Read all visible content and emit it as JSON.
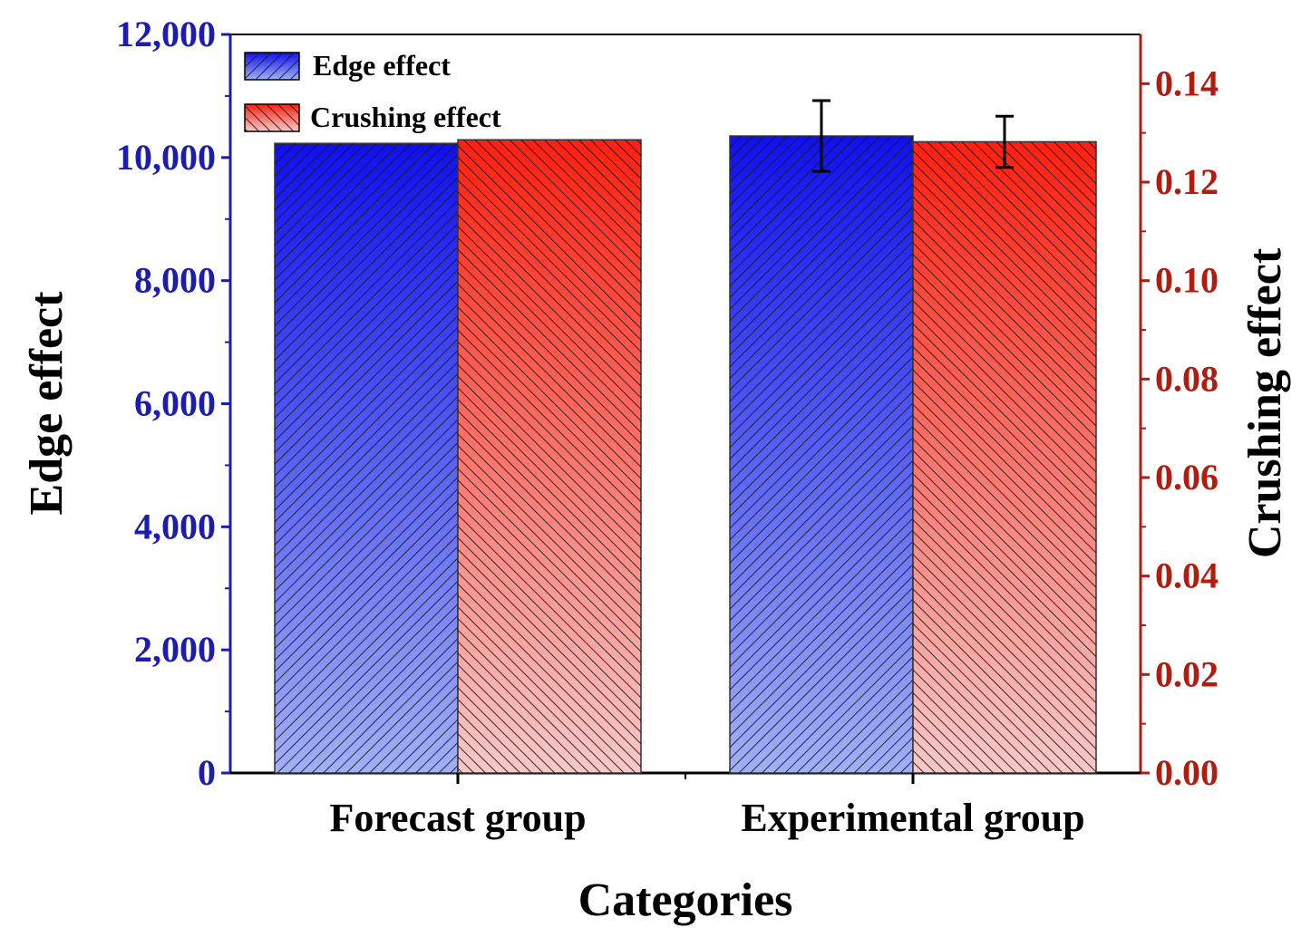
{
  "chart_data": {
    "type": "bar",
    "categories": [
      "Forecast group",
      "Experimental group"
    ],
    "xlabel": "Categories",
    "ylabel_left": "Edge effect",
    "ylabel_right": "Crushing effect",
    "ylim_left": [
      0,
      12000
    ],
    "ylim_right": [
      0,
      0.15
    ],
    "yticks_left": [
      0,
      2000,
      4000,
      6000,
      8000,
      10000,
      12000
    ],
    "yticks_left_labels": [
      "0",
      "2,000",
      "4,000",
      "6,000",
      "8,000",
      "10,000",
      "12,000"
    ],
    "yticks_right": [
      0,
      0.02,
      0.04,
      0.06,
      0.08,
      0.1,
      0.12,
      0.14
    ],
    "yticks_right_labels": [
      "0.00",
      "0.02",
      "0.04",
      "0.06",
      "0.08",
      "0.10",
      "0.12",
      "0.14"
    ],
    "legend_position": "top-left",
    "series": [
      {
        "name": "Edge effect",
        "axis": "left",
        "values": [
          10230,
          10350
        ],
        "errors": [
          null,
          575
        ],
        "color": "#1010f0",
        "color_light": "#a0b0f8",
        "hatch": "forward"
      },
      {
        "name": "Crushing effect",
        "axis": "right",
        "values": [
          0.1286,
          0.1282
        ],
        "errors": [
          null,
          0.0052
        ],
        "color": "#ff2010",
        "color_light": "#f8c8c8",
        "hatch": "backward"
      }
    ],
    "colors": {
      "left_axis": "#1c1cb0",
      "right_axis": "#b01c10",
      "text": "#000000"
    }
  }
}
